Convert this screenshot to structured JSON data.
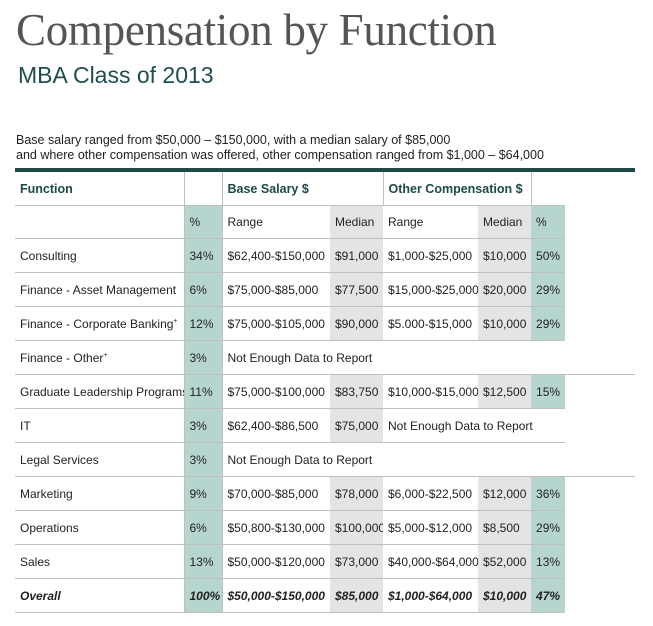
{
  "header": {
    "title": "Compensation by Function",
    "subtitle": "MBA Class of 2013",
    "description_line1": "Base salary ranged from $50,000 – $150,000, with a median salary of $85,000",
    "description_line2": "and where other compensation was offered, other compensation ranged from $1,000 – $64,000"
  },
  "table": {
    "group_headers": {
      "function": "Function",
      "base_salary": "Base Salary $",
      "other_comp": "Other Compensation $"
    },
    "sub_headers": {
      "pct": "%",
      "range": "Range",
      "median": "Median",
      "range2": "Range",
      "median2": "Median",
      "pct2": "%"
    },
    "not_enough": "Not Enough Data to Report",
    "rows": [
      {
        "function": "Consulting",
        "pct": "34%",
        "base_range": "$62,400-$150,000",
        "base_median": "$91,000",
        "other_range": "$1,000-$25,000",
        "other_median": "$10,000",
        "other_pct": "50%"
      },
      {
        "function": "Finance - Asset Management",
        "pct": "6%",
        "base_range": "$75,000-$85,000",
        "base_median": "$77,500",
        "other_range": "$15,000-$25,000",
        "other_median": "$20,000",
        "other_pct": "29%"
      },
      {
        "function": "Finance - Corporate Banking",
        "sup": "+",
        "pct": "12%",
        "base_range": "$75,000-$105,000",
        "base_median": "$90,000",
        "other_range": "$5.000-$15,000",
        "other_median": "$10,000",
        "other_pct": "29%"
      },
      {
        "function": "Finance - Other",
        "sup": "+",
        "pct": "3%"
      },
      {
        "function": "Graduate Leadership Programs",
        "pct": "11%",
        "base_range": "$75,000-$100,000",
        "base_median": "$83,750",
        "other_range": "$10,000-$15,000",
        "other_median": "$12,500",
        "other_pct": "15%"
      },
      {
        "function": "IT",
        "pct": "3%",
        "base_range": "$62,400-$86,500",
        "base_median": "$75,000"
      },
      {
        "function": "Legal Services",
        "pct": "3%"
      },
      {
        "function": "Marketing",
        "pct": "9%",
        "base_range": "$70,000-$85,000",
        "base_median": "$78,000",
        "other_range": "$6,000-$22,500",
        "other_median": "$12,000",
        "other_pct": "36%"
      },
      {
        "function": "Operations",
        "pct": "6%",
        "base_range": "$50,800-$130,000",
        "base_median": "$100,000",
        "other_range": "$5,000-$12,000",
        "other_median": "$8,500",
        "other_pct": "29%"
      },
      {
        "function": "Sales",
        "pct": "13%",
        "base_range": "$50,000-$120,000",
        "base_median": "$73,000",
        "other_range": "$40,000-$64,000",
        "other_median": "$52,000",
        "other_pct": "13%"
      }
    ],
    "total": {
      "function": "Overall",
      "pct": "100%",
      "base_range": "$50,000-$150,000",
      "base_median": "$85,000",
      "other_range": "$1,000-$64,000",
      "other_median": "$10,000",
      "other_pct": "47%"
    }
  }
}
